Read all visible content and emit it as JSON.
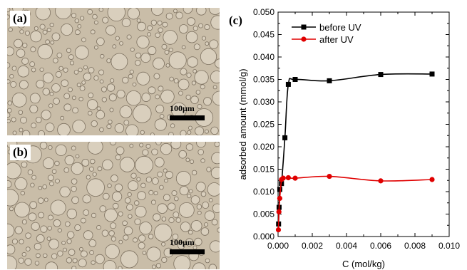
{
  "panels": [
    {
      "label": "(a)",
      "scale_text": "100μm"
    },
    {
      "label": "(b)",
      "scale_text": "100μm"
    }
  ],
  "chart_label": "(c)",
  "chart_data": {
    "type": "line",
    "xlabel": "C",
    "xlabel_subscript": "",
    "xlabel_unit": "(mol/kg)",
    "ylabel": "adsorbed amount (mmol/g)",
    "xlim": [
      0.0,
      0.01
    ],
    "ylim": [
      0.0,
      0.05
    ],
    "x_ticks": [
      "0.000",
      "0.002",
      "0.004",
      "0.006",
      "0.008",
      "0.010"
    ],
    "y_ticks": [
      "0.000",
      "0.005",
      "0.010",
      "0.015",
      "0.020",
      "0.025",
      "0.030",
      "0.035",
      "0.040",
      "0.045",
      "0.050"
    ],
    "legend_position": "top-left",
    "grid": false,
    "series": [
      {
        "name": "before UV",
        "color": "#000000",
        "marker": "square",
        "x": [
          3e-05,
          6e-05,
          0.0001,
          0.0002,
          0.0004,
          0.0006,
          0.001,
          0.003,
          0.006,
          0.009
        ],
        "y": [
          0.0028,
          0.0065,
          0.0105,
          0.0118,
          0.022,
          0.0339,
          0.035,
          0.0347,
          0.0361,
          0.0362
        ]
      },
      {
        "name": "after UV",
        "color": "#e00000",
        "marker": "circle",
        "x": [
          2e-05,
          5e-05,
          0.0001,
          0.0002,
          0.0003,
          0.0006,
          0.001,
          0.003,
          0.006,
          0.009
        ],
        "y": [
          0.0015,
          0.0055,
          0.0085,
          0.0127,
          0.013,
          0.0131,
          0.013,
          0.0134,
          0.0124,
          0.0127
        ]
      }
    ]
  },
  "colors": {
    "micro_background": "#c9bda8",
    "droplet_fill": "#d9cfbd",
    "droplet_edge": "#7d7160"
  }
}
